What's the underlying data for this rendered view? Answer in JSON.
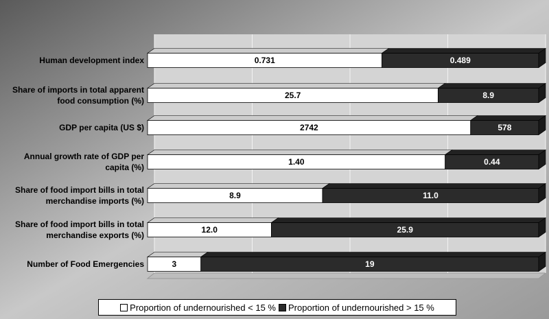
{
  "chart_data": {
    "type": "bar",
    "orientation": "horizontal",
    "stacked": "percent",
    "categories": [
      "Human development index",
      "Share of imports in total apparent food consumption (%)",
      "GDP per capita (US $)",
      "Annual growth rate of GDP per capita (%)",
      "Share of food import bills in total merchandise imports (%)",
      "Share of food import bills in total merchandise exports (%)",
      "Number of Food Emergencies"
    ],
    "series": [
      {
        "name": "Proportion of undernourished < 15 %",
        "color": "#ffffff",
        "values": [
          0.731,
          25.7,
          2742,
          1.4,
          8.9,
          12.0,
          3
        ],
        "value_labels": [
          "0.731",
          "25.7",
          "2742",
          "1.40",
          "8.9",
          "12.0",
          "3"
        ]
      },
      {
        "name": "Proportion of undernourished > 15 %",
        "color": "#2b2b2b",
        "values": [
          0.489,
          8.9,
          578,
          0.44,
          11.0,
          25.9,
          19
        ],
        "value_labels": [
          "0.489",
          "8.9",
          "578",
          "0.44",
          "11.0",
          "25.9",
          "19"
        ]
      }
    ],
    "xlim": [
      0,
      100
    ],
    "xticks": [
      0,
      25,
      50,
      75,
      100
    ],
    "grid": true,
    "legend": "bottom"
  }
}
